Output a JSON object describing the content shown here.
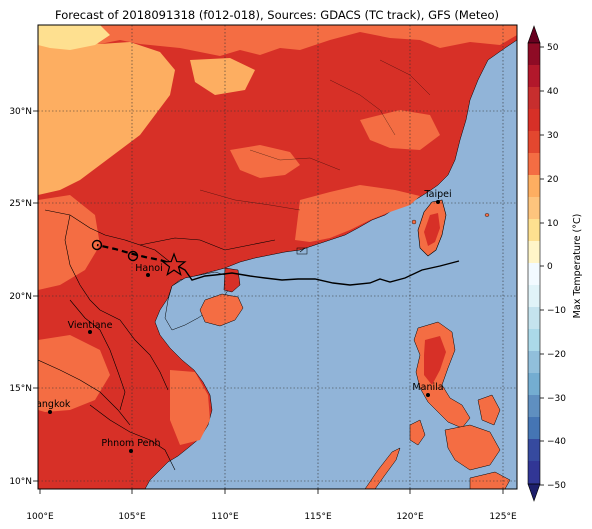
{
  "title": "Forecast of 2018091318 (f012-018), Sources: GDACS (TC track), GFS (Meteo)",
  "lon_ticks": [
    "100°E",
    "105°E",
    "110°E",
    "115°E",
    "120°E",
    "125°E"
  ],
  "lat_ticks": [
    "30°N",
    "25°N",
    "20°N",
    "15°N",
    "10°N"
  ],
  "cities": [
    {
      "name": "Taipei"
    },
    {
      "name": "Hanoi"
    },
    {
      "name": "Vientiane"
    },
    {
      "name": "Manila"
    },
    {
      "name": "Bangkok"
    },
    {
      "name": "Phnom Penh"
    }
  ],
  "colorbar": {
    "label": "Max Temperature (°C)",
    "ticks": [
      "50",
      "40",
      "30",
      "20",
      "10",
      "0",
      "−10",
      "−20",
      "−30",
      "−40",
      "−50"
    ]
  },
  "colors": {
    "sea": "#91b4d8",
    "land_hot": "#d73027",
    "land_warm": "#f46d43",
    "land_mild": "#fdae61",
    "land_cool": "#fee090"
  }
}
